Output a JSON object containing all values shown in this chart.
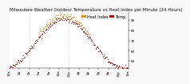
{
  "title": "Milwaukee Weather Outdoor Temperature vs Heat Index per Minute (24 Hours)",
  "bg_color": "#f8f8f8",
  "plot_bg": "#ffffff",
  "temp_color": "#cc0000",
  "heat_color": "#ff8800",
  "legend_labels": [
    "Heat Index",
    "Temp"
  ],
  "legend_colors": [
    "#ff8800",
    "#cc0000"
  ],
  "ylim": [
    43,
    98
  ],
  "xlim": [
    0,
    1440
  ],
  "yticks": [
    50,
    60,
    70,
    80,
    90
  ],
  "xtick_positions": [
    0,
    120,
    240,
    360,
    480,
    600,
    720,
    840,
    960,
    1080,
    1200,
    1320,
    1440
  ],
  "xtick_labels": [
    "12a",
    "2a",
    "4a",
    "6a",
    "8a",
    "10a",
    "12p",
    "2p",
    "4p",
    "6p",
    "8p",
    "10p",
    "12a"
  ],
  "vline_positions": [
    240,
    720
  ],
  "title_fontsize": 4,
  "tick_fontsize": 3,
  "legend_fontsize": 3.5,
  "dot_size": 0.4
}
